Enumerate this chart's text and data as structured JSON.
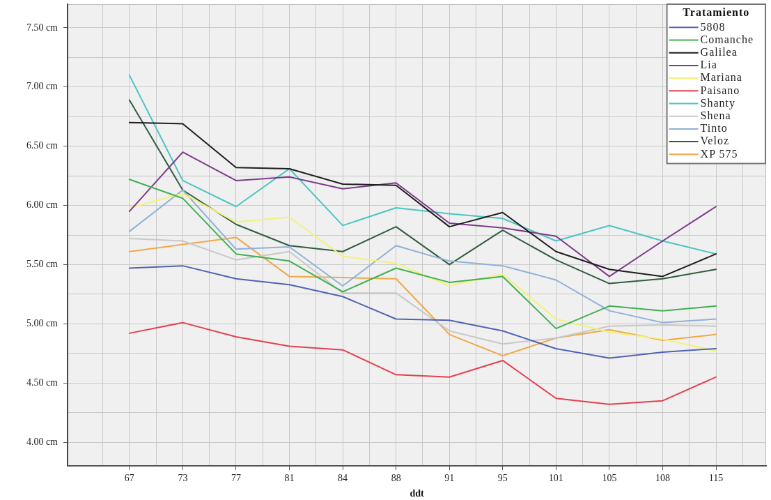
{
  "chart_data": {
    "type": "line",
    "xlabel": "ddt",
    "legend_title": "Tratamiento",
    "legend": "top right",
    "grid": true,
    "line_style": "solid",
    "categories": [
      "67",
      "73",
      "77",
      "81",
      "84",
      "88",
      "91",
      "95",
      "101",
      "105",
      "108",
      "115"
    ],
    "ylim": [
      3.8,
      7.7
    ],
    "yticks": [
      {
        "value": 4,
        "label": "4.00 cm"
      },
      {
        "value": 4.25,
        "label": null
      },
      {
        "value": 4.5,
        "label": "4.50 cm"
      },
      {
        "value": 4.75,
        "label": null
      },
      {
        "value": 5,
        "label": "5.00 cm"
      },
      {
        "value": 5.25,
        "label": null
      },
      {
        "value": 5.5,
        "label": "5.50 cm"
      },
      {
        "value": 5.75,
        "label": null
      },
      {
        "value": 6,
        "label": "6.00 cm"
      },
      {
        "value": 6.25,
        "label": null
      },
      {
        "value": 6.5,
        "label": "6.50 cm"
      },
      {
        "value": 6.75,
        "label": null
      },
      {
        "value": 7,
        "label": "7.00 cm"
      },
      {
        "value": 7.25,
        "label": null
      },
      {
        "value": 7.5,
        "label": "7.50 cm"
      }
    ],
    "series": [
      {
        "name": "5808",
        "color": "#5163b0",
        "values": [
          5.47,
          5.49,
          5.38,
          5.33,
          5.23,
          5.04,
          5.03,
          4.94,
          4.79,
          4.71,
          4.76,
          4.79
        ]
      },
      {
        "name": "Comanche",
        "color": "#40b050",
        "values": [
          6.22,
          6.06,
          5.59,
          5.53,
          5.27,
          5.47,
          5.35,
          5.4,
          4.96,
          5.15,
          5.11,
          5.15
        ]
      },
      {
        "name": "Galilea",
        "color": "#1e1e1e",
        "values": [
          6.7,
          6.69,
          6.32,
          6.31,
          6.18,
          6.17,
          5.82,
          5.94,
          5.61,
          5.46,
          5.4,
          5.59
        ]
      },
      {
        "name": "Lia",
        "color": "#7e3a8a",
        "values": [
          5.95,
          6.45,
          6.21,
          6.24,
          6.14,
          6.19,
          5.85,
          5.81,
          5.74,
          5.4,
          5.7,
          5.99
        ]
      },
      {
        "name": "Mariana",
        "color": "#f2f27a",
        "values": [
          5.98,
          6.1,
          5.86,
          5.9,
          5.57,
          5.51,
          5.32,
          5.42,
          5.04,
          4.93,
          4.87,
          4.77
        ]
      },
      {
        "name": "Paisano",
        "color": "#e5404e",
        "values": [
          4.92,
          5.01,
          4.89,
          4.81,
          4.78,
          4.57,
          4.55,
          4.69,
          4.37,
          4.32,
          4.35,
          4.55
        ]
      },
      {
        "name": "Shanty",
        "color": "#4cc4c4",
        "values": [
          7.1,
          6.21,
          5.99,
          6.31,
          5.83,
          5.98,
          5.93,
          5.89,
          5.7,
          5.83,
          5.7,
          5.59
        ]
      },
      {
        "name": "Shena",
        "color": "#c8c8c8",
        "values": [
          5.72,
          5.7,
          5.54,
          5.61,
          5.26,
          5.26,
          4.94,
          4.83,
          4.88,
          4.98,
          4.99,
          4.98
        ]
      },
      {
        "name": "Tinto",
        "color": "#8fb0d8",
        "values": [
          5.78,
          6.13,
          5.63,
          5.65,
          5.32,
          5.66,
          5.53,
          5.49,
          5.37,
          5.11,
          5.01,
          5.04
        ]
      },
      {
        "name": "Veloz",
        "color": "#2f5d3e",
        "values": [
          6.89,
          6.13,
          5.84,
          5.66,
          5.61,
          5.82,
          5.5,
          5.79,
          5.54,
          5.34,
          5.38,
          5.46
        ]
      },
      {
        "name": "XP 575",
        "color": "#f0a848",
        "values": [
          5.61,
          5.67,
          5.73,
          5.4,
          5.39,
          5.38,
          4.91,
          4.73,
          4.88,
          4.95,
          4.86,
          4.91
        ]
      }
    ]
  }
}
